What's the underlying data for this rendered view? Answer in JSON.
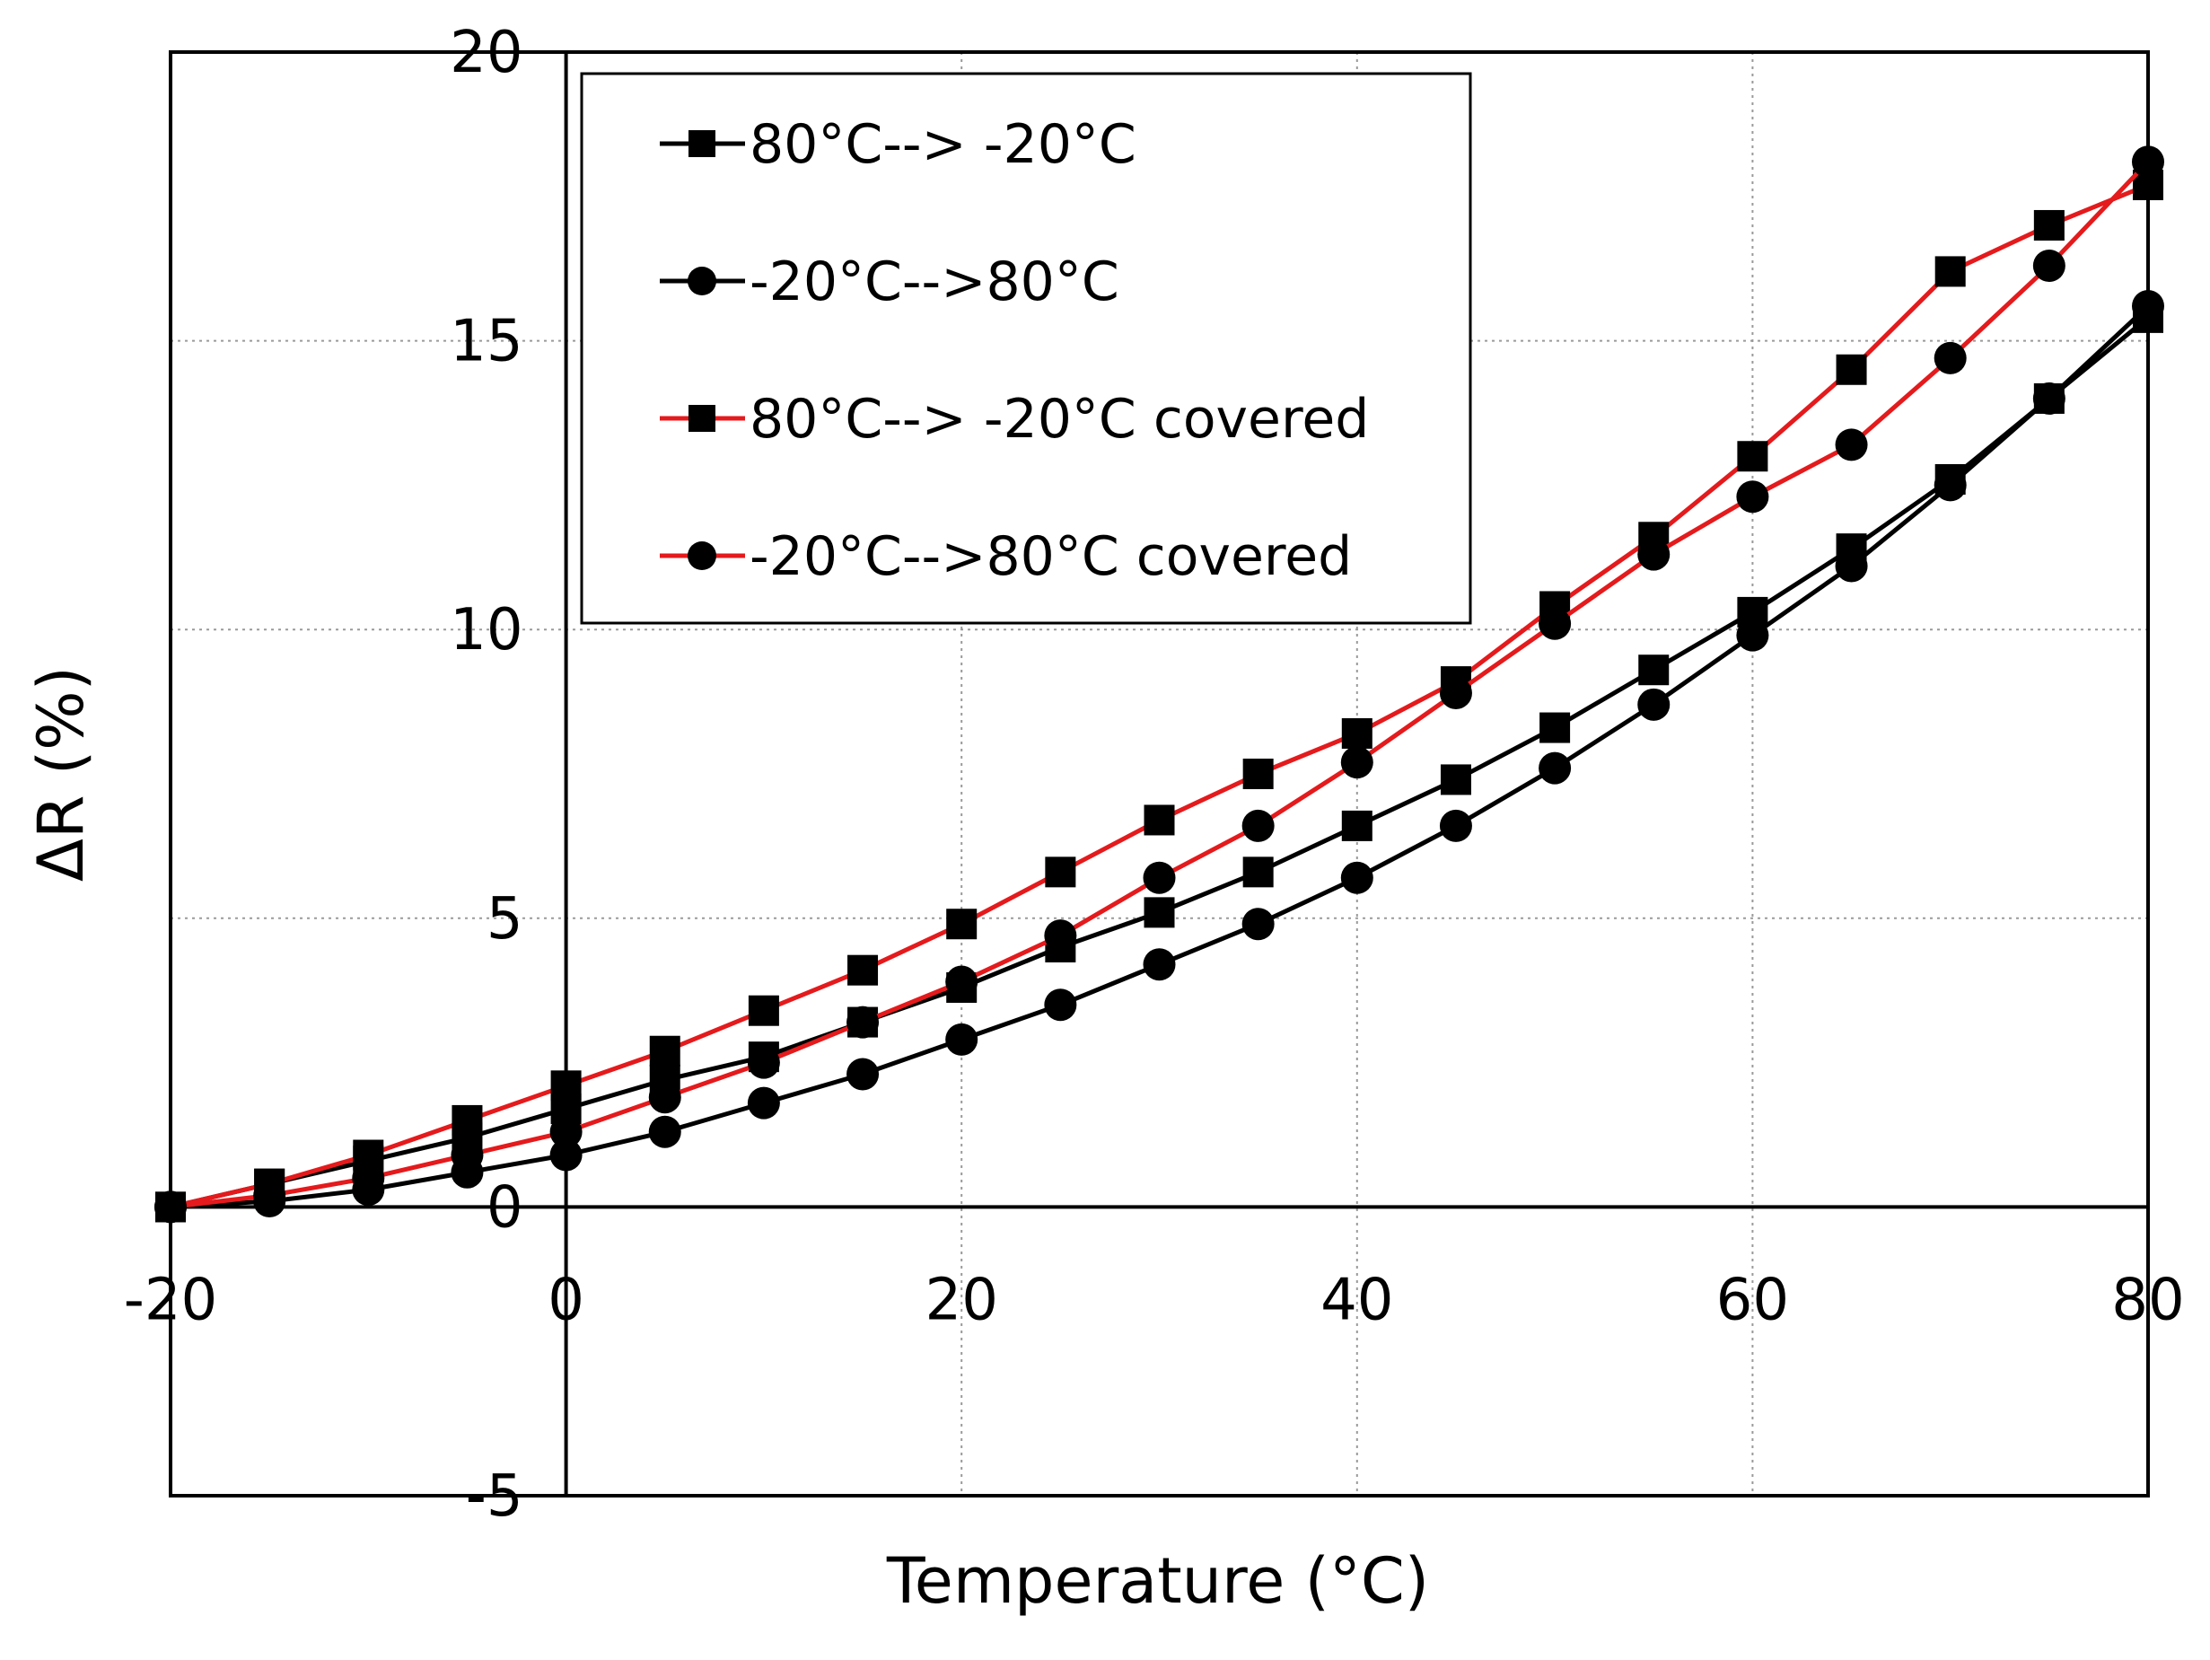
{
  "chart_data": {
    "type": "line",
    "title": "",
    "xlabel": "Temperature (°C)",
    "ylabel": "ΔR (%)",
    "xlim": [
      -20,
      80
    ],
    "ylim": [
      -5,
      20
    ],
    "xticks": [
      -20,
      0,
      20,
      40,
      60,
      80
    ],
    "yticks": [
      -5,
      0,
      5,
      10,
      15,
      20
    ],
    "x_tick_labels": [
      "-20",
      "0",
      "20",
      "40",
      "60",
      "80"
    ],
    "y_tick_labels": [
      "-5",
      "0",
      "5",
      "10",
      "15",
      "20"
    ],
    "grid": true,
    "legend_position": "top-left",
    "series": [
      {
        "name": "80°C--> -20°C",
        "color": "#000000",
        "marker": "square",
        "x": [
          80,
          75,
          70,
          65,
          60,
          55,
          50,
          45,
          40,
          35,
          30,
          25,
          20,
          15,
          10,
          5,
          0,
          -5,
          -10,
          -15,
          -20
        ],
        "values": [
          15.4,
          14.0,
          12.6,
          11.4,
          10.3,
          9.3,
          8.3,
          7.4,
          6.6,
          5.8,
          5.1,
          4.5,
          3.8,
          3.2,
          2.6,
          2.2,
          1.7,
          1.2,
          0.8,
          0.4,
          0.0
        ]
      },
      {
        "name": "-20°C-->80°C",
        "color": "#000000",
        "marker": "circle",
        "x": [
          -20,
          -15,
          -10,
          -5,
          0,
          5,
          10,
          15,
          20,
          25,
          30,
          35,
          40,
          45,
          50,
          55,
          60,
          65,
          70,
          75,
          80
        ],
        "values": [
          0.0,
          0.1,
          0.3,
          0.6,
          0.9,
          1.3,
          1.8,
          2.3,
          2.9,
          3.5,
          4.2,
          4.9,
          5.7,
          6.6,
          7.6,
          8.7,
          9.9,
          11.1,
          12.5,
          14.0,
          15.6
        ]
      },
      {
        "name": "80°C--> -20°C covered",
        "color": "#e41a1c",
        "marker": "square",
        "x": [
          80,
          75,
          70,
          65,
          60,
          55,
          50,
          45,
          40,
          35,
          30,
          25,
          20,
          15,
          10,
          5,
          0,
          -5,
          -10,
          -15,
          -20
        ],
        "values": [
          17.7,
          17.0,
          16.2,
          14.5,
          13.0,
          11.6,
          10.4,
          9.1,
          8.2,
          7.5,
          6.7,
          5.8,
          4.9,
          4.1,
          3.4,
          2.7,
          2.1,
          1.5,
          0.9,
          0.4,
          0.0
        ]
      },
      {
        "name": "-20°C-->80°C covered",
        "color": "#e41a1c",
        "marker": "circle",
        "x": [
          -20,
          -15,
          -10,
          -5,
          0,
          5,
          10,
          15,
          20,
          25,
          30,
          35,
          40,
          45,
          50,
          55,
          60,
          65,
          70,
          75,
          80
        ],
        "values": [
          0.0,
          0.2,
          0.5,
          0.9,
          1.3,
          1.9,
          2.5,
          3.2,
          3.9,
          4.7,
          5.7,
          6.6,
          7.7,
          8.9,
          10.1,
          11.3,
          12.3,
          13.2,
          14.7,
          16.3,
          18.1
        ]
      }
    ]
  }
}
